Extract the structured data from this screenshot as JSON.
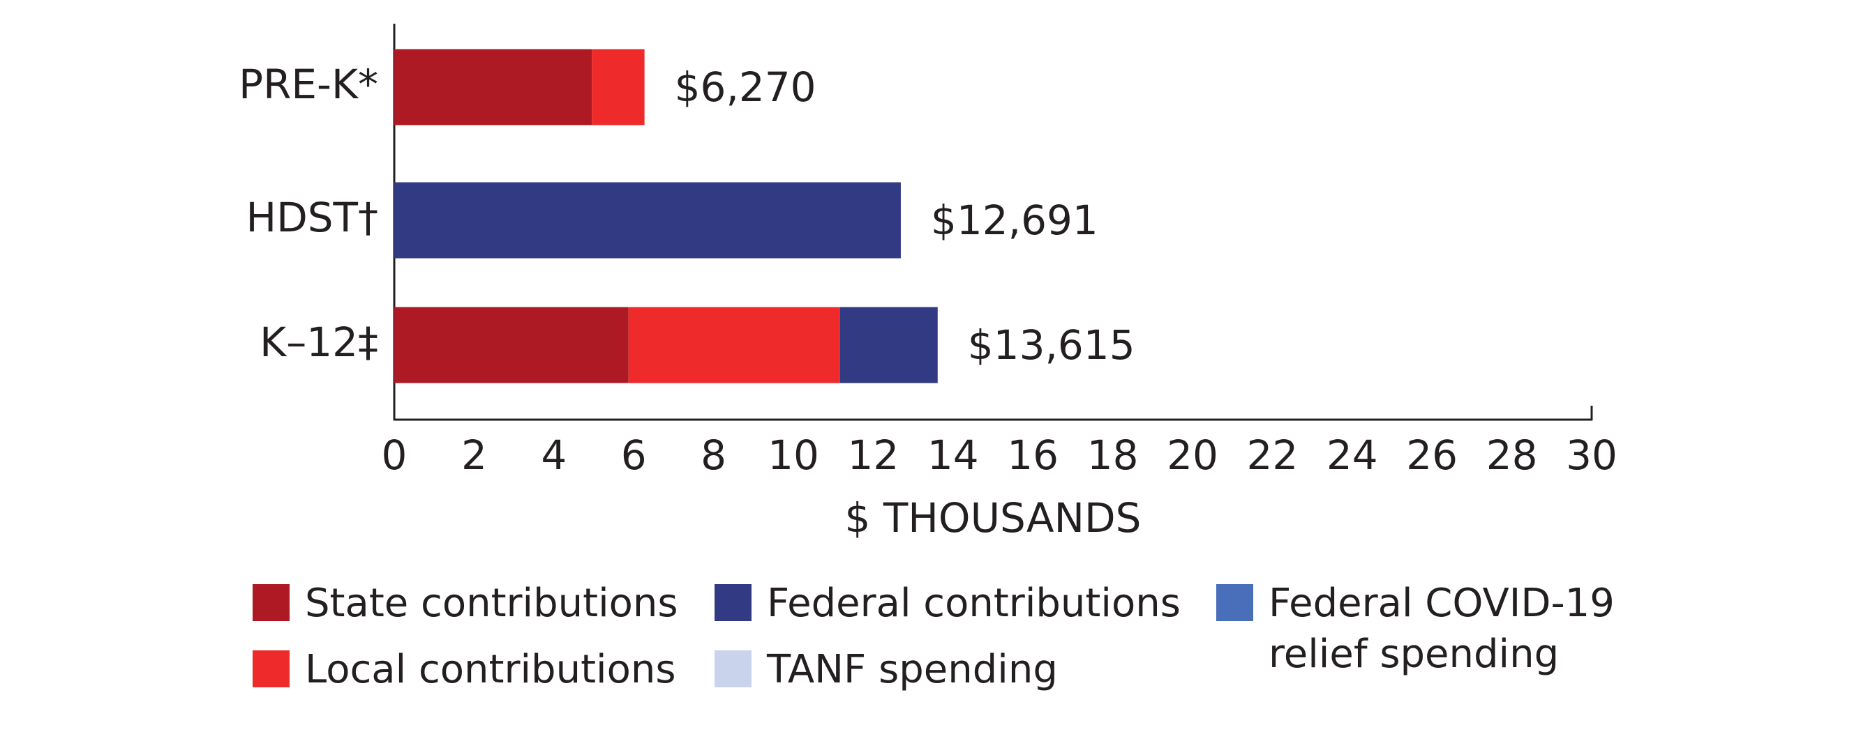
{
  "chart_data": {
    "type": "stacked-bar-horizontal",
    "categories": [
      "PRE-K*",
      "HDST†",
      "K–12‡"
    ],
    "series": [
      {
        "name": "State contributions",
        "color": "#ad1a24",
        "values": [
          4.95,
          null,
          5.87
        ]
      },
      {
        "name": "Local contributions",
        "color": "#ee2a2b",
        "values": [
          1.32,
          null,
          5.3
        ]
      },
      {
        "name": "Federal contributions",
        "color": "#323a84",
        "values": [
          null,
          12.691,
          2.445
        ]
      },
      {
        "name": "TANF spending",
        "color": "#c9d3ec",
        "values": [
          null,
          null,
          null
        ]
      },
      {
        "name": "Federal COVID-19 relief spending",
        "color": "#4a6fba",
        "values": [
          null,
          null,
          null
        ]
      }
    ],
    "totals": [
      6.27,
      12.691,
      13.615
    ],
    "total_labels": [
      "$6,270",
      "$12,691",
      "$13,615"
    ],
    "x_label": "$ THOUSANDS",
    "xlim": [
      0,
      30
    ],
    "xticks": [
      0,
      2,
      4,
      6,
      8,
      10,
      12,
      14,
      16,
      18,
      20,
      22,
      24,
      26,
      28,
      30
    ],
    "grid": false
  }
}
